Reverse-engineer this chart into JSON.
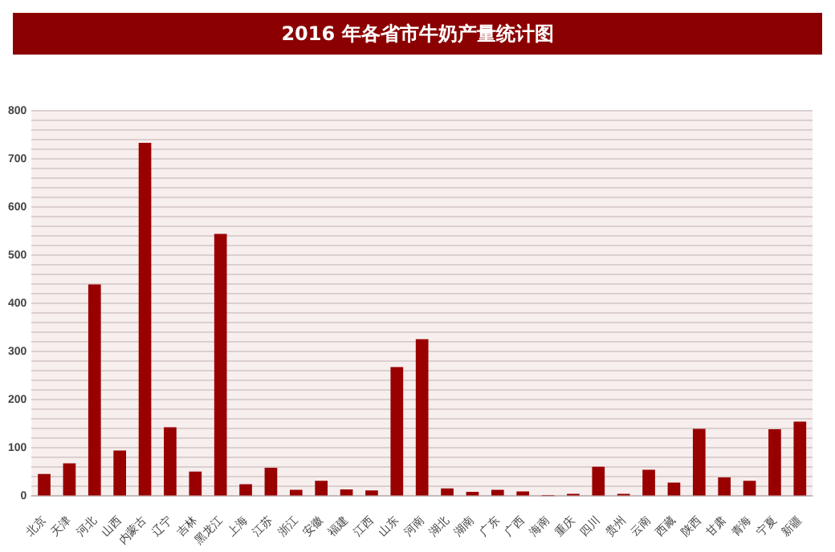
{
  "chart_data": {
    "type": "bar",
    "title": "2016 年各省市牛奶产量统计图",
    "categories": [
      "北京",
      "天津",
      "河北",
      "山西",
      "内蒙古",
      "辽宁",
      "吉林",
      "黑龙江",
      "上海",
      "江苏",
      "浙江",
      "安徽",
      "福建",
      "江西",
      "山东",
      "河南",
      "湖北",
      "湖南",
      "广东",
      "广西",
      "海南",
      "重庆",
      "四川",
      "贵州",
      "云南",
      "西藏",
      "陕西",
      "甘肃",
      "青海",
      "宁夏",
      "新疆"
    ],
    "values": [
      46,
      68,
      440,
      95,
      734,
      143,
      51,
      545,
      25,
      59,
      13,
      32,
      14,
      12,
      268,
      326,
      16,
      9,
      13,
      10,
      0.2,
      5,
      61,
      5,
      55,
      28,
      140,
      39,
      32,
      139,
      155
    ],
    "color": "#990000",
    "ylim": [
      0,
      800
    ],
    "yticks": [
      0,
      {
        "value": 20,
        "label": null
      },
      {
        "value": 40,
        "label": null
      },
      {
        "value": 60,
        "label": null
      },
      {
        "value": 80,
        "label": null
      },
      100,
      {
        "value": 120,
        "label": null
      },
      {
        "value": 140,
        "label": null
      },
      {
        "value": 160,
        "label": null
      },
      {
        "value": 180,
        "label": null
      },
      200,
      {
        "value": 220,
        "label": null
      },
      {
        "value": 240,
        "label": null
      },
      {
        "value": 260,
        "label": null
      },
      {
        "value": 280,
        "label": null
      },
      300,
      {
        "value": 320,
        "label": null
      },
      {
        "value": 340,
        "label": null
      },
      {
        "value": 360,
        "label": null
      },
      {
        "value": 380,
        "label": null
      },
      400,
      {
        "value": 420,
        "label": null
      },
      {
        "value": 440,
        "label": null
      },
      {
        "value": 460,
        "label": null
      },
      {
        "value": 480,
        "label": null
      },
      500,
      {
        "value": 520,
        "label": null
      },
      {
        "value": 540,
        "label": null
      },
      {
        "value": 560,
        "label": null
      },
      {
        "value": 580,
        "label": null
      },
      600,
      {
        "value": 620,
        "label": null
      },
      {
        "value": 640,
        "label": null
      },
      {
        "value": 660,
        "label": null
      },
      {
        "value": 680,
        "label": null
      },
      700,
      {
        "value": 720,
        "label": null
      },
      {
        "value": 740,
        "label": null
      },
      {
        "value": 760,
        "label": null
      },
      {
        "value": 780,
        "label": null
      },
      800
    ],
    "grid": "y"
  }
}
